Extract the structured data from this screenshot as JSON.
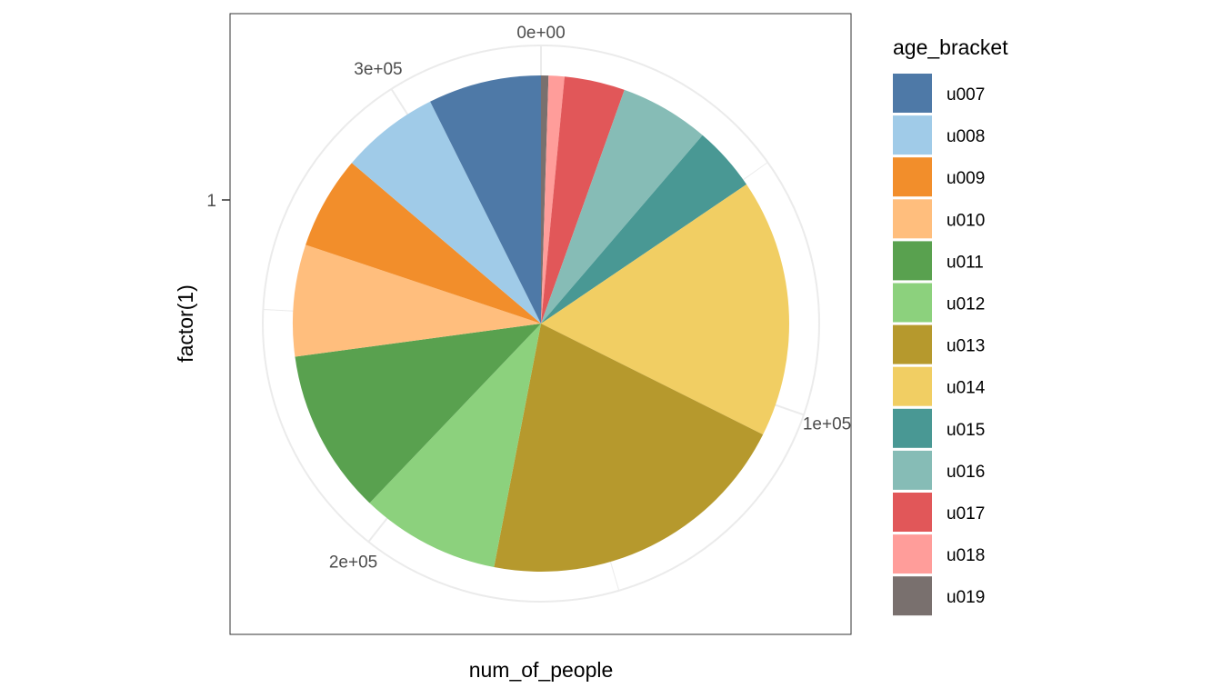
{
  "chart_data": {
    "type": "pie",
    "title": "",
    "xlabel": "num_of_people",
    "ylabel": "factor(1)",
    "y_tick_labels": [
      "1"
    ],
    "theta_tick_labels": [
      "0e+00",
      "1e+05",
      "2e+05",
      "3e+05"
    ],
    "theta_ticks": [
      0,
      100000,
      200000,
      300000
    ],
    "theta_minor_ticks": [
      50000,
      150000,
      250000
    ],
    "legend": {
      "title": "age_bracket",
      "placement": "right"
    },
    "categories": [
      "u007",
      "u008",
      "u009",
      "u010",
      "u011",
      "u012",
      "u013",
      "u014",
      "u015",
      "u016",
      "u017",
      "u018",
      "u019"
    ],
    "values": [
      24300,
      21200,
      20000,
      24000,
      35400,
      30000,
      68100,
      55600,
      14000,
      19200,
      13000,
      3400,
      1600
    ],
    "colors": [
      "#4E79A7",
      "#A0CBE8",
      "#F28E2B",
      "#FFBE7D",
      "#59A14F",
      "#8CD17D",
      "#B6992D",
      "#F1CE63",
      "#499894",
      "#86BCB6",
      "#E15759",
      "#FF9D9A",
      "#79706E"
    ]
  }
}
